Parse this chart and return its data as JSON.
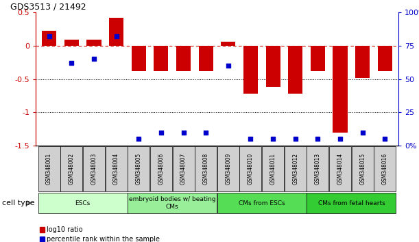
{
  "title": "GDS3513 / 21492",
  "samples": [
    "GSM348001",
    "GSM348002",
    "GSM348003",
    "GSM348004",
    "GSM348005",
    "GSM348006",
    "GSM348007",
    "GSM348008",
    "GSM348009",
    "GSM348010",
    "GSM348011",
    "GSM348012",
    "GSM348013",
    "GSM348014",
    "GSM348015",
    "GSM348016"
  ],
  "log10_ratio": [
    0.22,
    0.09,
    0.09,
    0.42,
    -0.38,
    -0.38,
    -0.38,
    -0.38,
    0.06,
    -0.72,
    -0.62,
    -0.72,
    -0.38,
    -1.3,
    -0.48,
    -0.38
  ],
  "percentile_rank": [
    82,
    62,
    65,
    82,
    5,
    10,
    10,
    10,
    60,
    5,
    5,
    5,
    5,
    5,
    10,
    5
  ],
  "ylim": [
    -1.5,
    0.5
  ],
  "y2lim": [
    0,
    100
  ],
  "yticks": [
    -1.5,
    -1.0,
    -0.5,
    0.0,
    0.5
  ],
  "y2ticks": [
    0,
    25,
    50,
    75,
    100
  ],
  "ytick_labels": [
    "-1.5",
    "-1",
    "-0.5",
    "0",
    "0.5"
  ],
  "y2tick_labels": [
    "0%",
    "25",
    "50",
    "75",
    "100%"
  ],
  "bar_color": "#cc0000",
  "dot_color": "#0000cc",
  "zero_line_color": "#cc0000",
  "grid_color": "#000000",
  "sample_box_color": "#d0d0d0",
  "cell_types": [
    {
      "label": "ESCs",
      "start": 0,
      "end": 4,
      "color": "#ccffcc"
    },
    {
      "label": "embryoid bodies w/ beating\nCMs",
      "start": 4,
      "end": 8,
      "color": "#99ee99"
    },
    {
      "label": "CMs from ESCs",
      "start": 8,
      "end": 12,
      "color": "#55dd55"
    },
    {
      "label": "CMs from fetal hearts",
      "start": 12,
      "end": 16,
      "color": "#33cc33"
    }
  ],
  "legend_items": [
    {
      "label": "log10 ratio",
      "color": "#cc0000"
    },
    {
      "label": "percentile rank within the sample",
      "color": "#0000cc"
    }
  ],
  "cell_type_label": "cell type",
  "cell_type_arrow_color": "#888888"
}
